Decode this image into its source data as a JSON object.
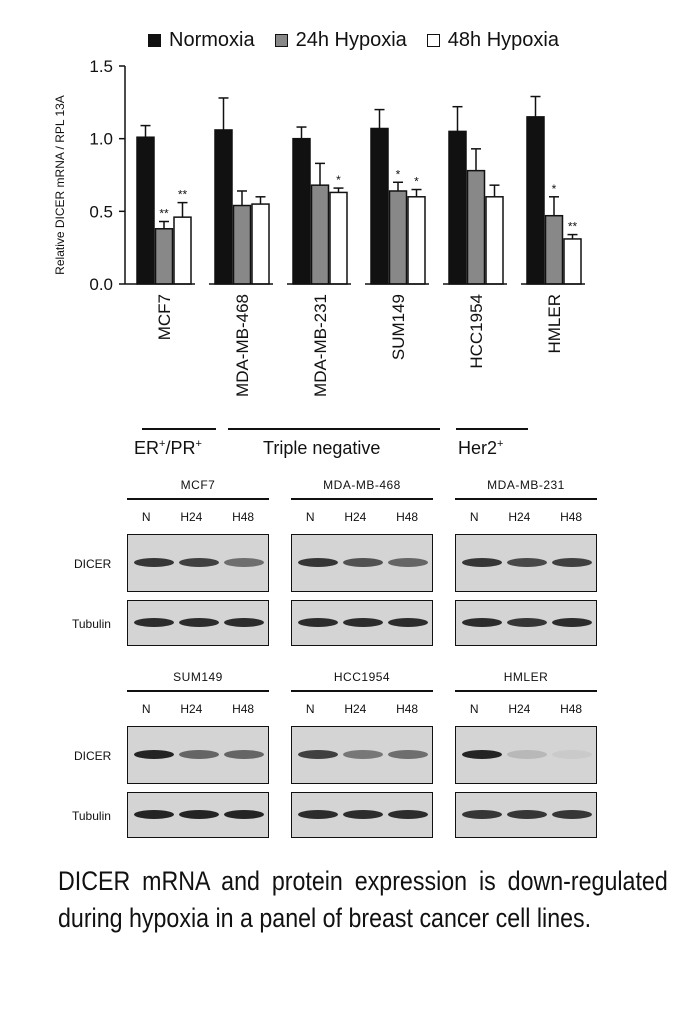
{
  "chart_data": {
    "type": "bar",
    "ylabel": "Relative DICER mRNA / RPL 13A",
    "ylim": [
      0,
      1.5
    ],
    "yticks": [
      "0.0",
      "0.5",
      "1.0",
      "1.5"
    ],
    "legend_placement": "top",
    "categories": [
      "MCF7",
      "MDA-MB-468",
      "MDA-MB-231",
      "SUM149",
      "HCC1954",
      "HMLER"
    ],
    "series": [
      {
        "name": "Normoxia",
        "color": "#111111",
        "values": [
          1.01,
          1.06,
          1.0,
          1.07,
          1.05,
          1.15
        ],
        "errors": [
          0.08,
          0.22,
          0.08,
          0.13,
          0.17,
          0.14
        ],
        "significance": [
          "",
          "",
          "",
          "",
          "",
          ""
        ]
      },
      {
        "name": "24h Hypoxia",
        "color": "#888888",
        "values": [
          0.38,
          0.54,
          0.68,
          0.64,
          0.78,
          0.47
        ],
        "errors": [
          0.05,
          0.1,
          0.15,
          0.06,
          0.15,
          0.13
        ],
        "significance": [
          "**",
          "",
          "",
          "*",
          "",
          "*"
        ]
      },
      {
        "name": "48h Hypoxia",
        "color": "#ffffff",
        "values": [
          0.46,
          0.55,
          0.63,
          0.6,
          0.6,
          0.31
        ],
        "errors": [
          0.1,
          0.05,
          0.03,
          0.05,
          0.08,
          0.03
        ],
        "significance": [
          "**",
          "",
          "*",
          "*",
          "",
          "**"
        ]
      }
    ],
    "groups": [
      {
        "label": "ER",
        "sup1": "+",
        "mid": "/PR",
        "sup2": "+",
        "from": 0,
        "to": 0
      },
      {
        "label": "Triple negative",
        "sup1": "",
        "mid": "",
        "sup2": "",
        "from": 1,
        "to": 3
      },
      {
        "label": "Her2",
        "sup1": "+",
        "mid": "",
        "sup2": "",
        "from": 4,
        "to": 4
      }
    ]
  },
  "blots": {
    "lanes": [
      "N",
      "H24",
      "H48"
    ],
    "row_labels": {
      "dicer": "DICER",
      "tubulin": "Tubulin"
    },
    "panels": [
      {
        "name": "MCF7",
        "dicer": [
          0.85,
          0.8,
          0.55
        ],
        "tubulin": [
          0.9,
          0.9,
          0.9
        ]
      },
      {
        "name": "MDA-MB-468",
        "dicer": [
          0.85,
          0.7,
          0.6
        ],
        "tubulin": [
          0.9,
          0.9,
          0.9
        ]
      },
      {
        "name": "MDA-MB-231",
        "dicer": [
          0.85,
          0.75,
          0.8
        ],
        "tubulin": [
          0.9,
          0.85,
          0.9
        ]
      },
      {
        "name": "SUM149",
        "dicer": [
          0.95,
          0.6,
          0.6
        ],
        "tubulin": [
          0.95,
          0.95,
          0.95
        ]
      },
      {
        "name": "HCC1954",
        "dicer": [
          0.8,
          0.5,
          0.55
        ],
        "tubulin": [
          0.9,
          0.9,
          0.9
        ]
      },
      {
        "name": "HMLER",
        "dicer": [
          0.95,
          0.15,
          0.05
        ],
        "tubulin": [
          0.85,
          0.85,
          0.85
        ]
      }
    ]
  },
  "caption": "DICER mRNA and protein expression is down-regulated during hypoxia in a panel of breast cancer cell lines."
}
